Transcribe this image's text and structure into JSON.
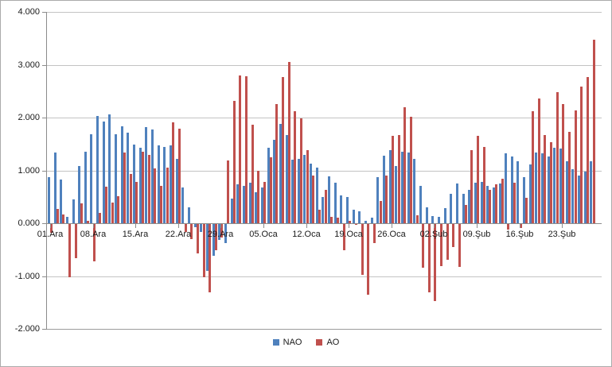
{
  "chart_data": {
    "type": "bar",
    "title": "",
    "xlabel": "",
    "ylabel": "",
    "ylim": [
      -2,
      4
    ],
    "grid": true,
    "legend_position": "bottom",
    "y_ticks": [
      4,
      3,
      2,
      1,
      0,
      -1,
      -2
    ],
    "y_tick_labels": [
      "4.000",
      "3.000",
      "2.000",
      "1.000",
      "0.000",
      "-1.000",
      "-2.000"
    ],
    "x_tick_indices": [
      0,
      7,
      14,
      21,
      28,
      35,
      42,
      49,
      56,
      63,
      70,
      77,
      84
    ],
    "x_tick_labels": [
      "01.Ara",
      "08.Ara",
      "15.Ara",
      "22.Ara",
      "29.Ara",
      "05.Oca",
      "12.Oca",
      "19.Oca",
      "26.Oca",
      "02.Şub",
      "09.Şub",
      "16.Şub",
      "23.Şub"
    ],
    "categories": [
      "01.Ara",
      "02.Ara",
      "03.Ara",
      "04.Ara",
      "05.Ara",
      "06.Ara",
      "07.Ara",
      "08.Ara",
      "09.Ara",
      "10.Ara",
      "11.Ara",
      "12.Ara",
      "13.Ara",
      "14.Ara",
      "15.Ara",
      "16.Ara",
      "17.Ara",
      "18.Ara",
      "19.Ara",
      "20.Ara",
      "21.Ara",
      "22.Ara",
      "23.Ara",
      "24.Ara",
      "25.Ara",
      "26.Ara",
      "27.Ara",
      "28.Ara",
      "29.Ara",
      "30.Ara",
      "31.Ara",
      "01.Oca",
      "02.Oca",
      "03.Oca",
      "04.Oca",
      "05.Oca",
      "06.Oca",
      "07.Oca",
      "08.Oca",
      "09.Oca",
      "10.Oca",
      "11.Oca",
      "12.Oca",
      "13.Oca",
      "14.Oca",
      "15.Oca",
      "16.Oca",
      "17.Oca",
      "18.Oca",
      "19.Oca",
      "20.Oca",
      "21.Oca",
      "22.Oca",
      "23.Oca",
      "24.Oca",
      "25.Oca",
      "26.Oca",
      "27.Oca",
      "28.Oca",
      "29.Oca",
      "30.Oca",
      "31.Oca",
      "01.Şub",
      "02.Şub",
      "03.Şub",
      "04.Şub",
      "05.Şub",
      "06.Şub",
      "07.Şub",
      "08.Şub",
      "09.Şub",
      "10.Şub",
      "11.Şub",
      "12.Şub",
      "13.Şub",
      "14.Şub",
      "15.Şub",
      "16.Şub",
      "17.Şub",
      "18.Şub",
      "19.Şub",
      "20.Şub",
      "21.Şub",
      "22.Şub",
      "23.Şub",
      "24.Şub",
      "25.Şub",
      "26.Şub",
      "27.Şub",
      "28.Şub"
    ],
    "series": [
      {
        "name": "NAO",
        "color": "#4F81BD",
        "values": [
          0.87,
          1.34,
          0.83,
          0.12,
          0.45,
          1.08,
          1.36,
          1.68,
          2.03,
          1.93,
          2.06,
          1.69,
          1.83,
          1.71,
          1.49,
          1.43,
          1.82,
          1.78,
          1.47,
          1.45,
          1.48,
          1.22,
          0.68,
          0.3,
          -0.06,
          -0.15,
          -0.88,
          -0.6,
          -0.3,
          -0.36,
          0.47,
          0.74,
          0.7,
          0.76,
          0.59,
          0.67,
          1.43,
          1.58,
          1.88,
          1.67,
          1.2,
          1.22,
          1.29,
          1.13,
          1.05,
          0.5,
          0.89,
          0.77,
          0.52,
          0.5,
          0.25,
          0.22,
          0.05,
          0.1,
          0.87,
          1.28,
          1.39,
          1.08,
          1.35,
          1.34,
          1.22,
          0.7,
          0.3,
          0.14,
          0.12,
          0.28,
          0.55,
          0.75,
          0.55,
          0.63,
          0.77,
          0.78,
          0.7,
          0.68,
          0.75,
          1.32,
          1.27,
          1.18,
          0.87,
          1.12,
          1.34,
          1.33,
          1.27,
          1.43,
          1.42,
          1.18,
          1.03,
          0.9,
          0.98,
          1.18
        ]
      },
      {
        "name": "AO",
        "color": "#C0504D",
        "values": [
          -0.17,
          0.27,
          0.17,
          -1.0,
          -0.65,
          0.38,
          0.05,
          -0.7,
          0.2,
          0.69,
          0.39,
          0.51,
          1.34,
          0.93,
          0.78,
          1.35,
          1.3,
          1.04,
          0.7,
          1.05,
          1.91,
          1.79,
          -0.15,
          -0.28,
          -0.55,
          -1.0,
          -1.3,
          -0.49,
          -0.25,
          1.19,
          2.32,
          2.8,
          2.78,
          1.87,
          0.99,
          0.78,
          1.25,
          2.26,
          2.76,
          3.05,
          2.12,
          1.98,
          1.39,
          0.9,
          0.25,
          0.63,
          0.12,
          0.1,
          -0.49,
          0.04,
          -0.02,
          -0.96,
          -1.34,
          -0.36,
          0.42,
          0.9,
          1.66,
          1.67,
          2.2,
          2.01,
          0.15,
          -0.83,
          -1.29,
          -1.46,
          -0.79,
          -0.68,
          -0.44,
          -0.81,
          0.35,
          1.38,
          1.65,
          1.45,
          0.63,
          0.74,
          0.84,
          -0.1,
          0.77,
          -0.08,
          0.48,
          2.12,
          2.36,
          1.67,
          1.53,
          2.48,
          2.26,
          1.73,
          2.13,
          2.58,
          2.76,
          3.48
        ]
      }
    ]
  },
  "legend": {
    "items": [
      {
        "label": "NAO",
        "color": "#4F81BD"
      },
      {
        "label": "AO",
        "color": "#C0504D"
      }
    ]
  },
  "colors": {
    "nao": "#4F81BD",
    "ao": "#C0504D",
    "gridline": "#c3c3c3",
    "axis": "#8c8c8c",
    "text": "#1a1a1a",
    "chart_border": "#ababab",
    "background": "#ffffff"
  }
}
